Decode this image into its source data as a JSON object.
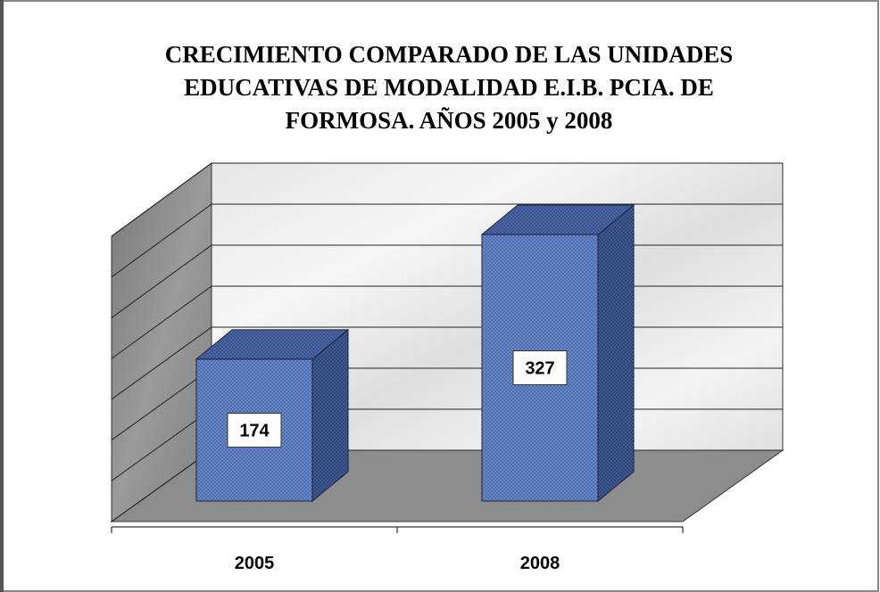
{
  "chart_data": {
    "type": "bar",
    "title": [
      "CRECIMIENTO COMPARADO DE LAS UNIDADES",
      "EDUCATIVAS DE MODALIDAD E.I.B. PCIA. DE",
      "FORMOSA. AÑOS 2005 y 2008"
    ],
    "categories": [
      "2005",
      "2008"
    ],
    "values": [
      174,
      327
    ],
    "color": "#5a7ac0",
    "ylim": [
      0,
      350
    ],
    "yticks": [
      0,
      50,
      100,
      150,
      200,
      250,
      300,
      350
    ],
    "grid": true
  }
}
